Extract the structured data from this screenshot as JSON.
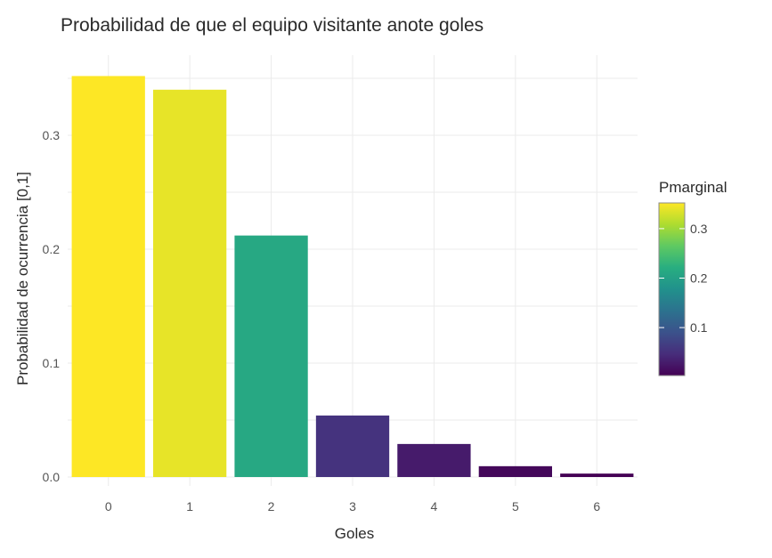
{
  "chart_data": {
    "type": "bar",
    "title": "Probabilidad de que el equipo visitante anote goles",
    "xlabel": "Goles",
    "ylabel": "Probabilidad de ocurrencia [0,1]",
    "categories": [
      "0",
      "1",
      "2",
      "3",
      "4",
      "5",
      "6"
    ],
    "values": [
      0.352,
      0.34,
      0.212,
      0.054,
      0.029,
      0.0095,
      0.003
    ],
    "ylim": [
      0,
      0.37
    ],
    "yticks": [
      0.0,
      0.1,
      0.2,
      0.3
    ],
    "ytick_labels": [
      "0.0",
      "0.1",
      "0.2",
      "0.3"
    ],
    "grid": true,
    "legend": {
      "title": "Pmarginal",
      "type": "colorbar",
      "colormap": "viridis",
      "range": [
        0.003,
        0.352
      ],
      "ticks": [
        0.1,
        0.2,
        0.3
      ],
      "tick_labels": [
        "0.1",
        "0.2",
        "0.3"
      ],
      "placement": "right"
    }
  }
}
